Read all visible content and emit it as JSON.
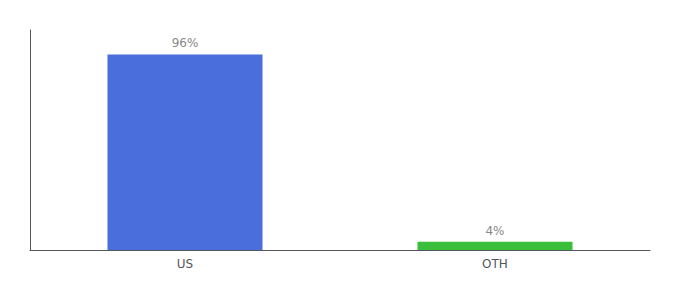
{
  "chart_data": {
    "type": "bar",
    "categories": [
      "US",
      "OTH"
    ],
    "values": [
      96,
      4
    ],
    "colors": [
      "#4a6fdc",
      "#3abf3a"
    ],
    "ylim": [
      0,
      108
    ],
    "data_labels": true,
    "value_labels": [
      "96%",
      "4%"
    ],
    "tick_labels": "x",
    "grid": false
  }
}
